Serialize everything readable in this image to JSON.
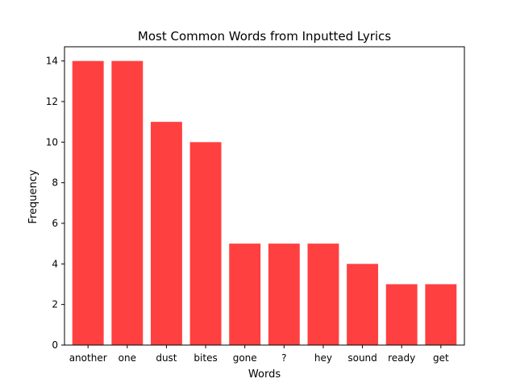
{
  "chart_data": {
    "type": "bar",
    "title": "Most Common Words from Inputted Lyrics",
    "xlabel": "Words",
    "ylabel": "Frequency",
    "categories": [
      "another",
      "one",
      "dust",
      "bites",
      "gone",
      "?",
      "hey",
      "sound",
      "ready",
      "get"
    ],
    "values": [
      14,
      14,
      11,
      10,
      5,
      5,
      5,
      4,
      3,
      3
    ],
    "ylim": [
      0,
      14.7
    ],
    "yticks": [
      "0",
      "2",
      "4",
      "6",
      "8",
      "10",
      "12",
      "14"
    ],
    "grid": false,
    "legend": "none",
    "bar_color": "#ff4040"
  }
}
